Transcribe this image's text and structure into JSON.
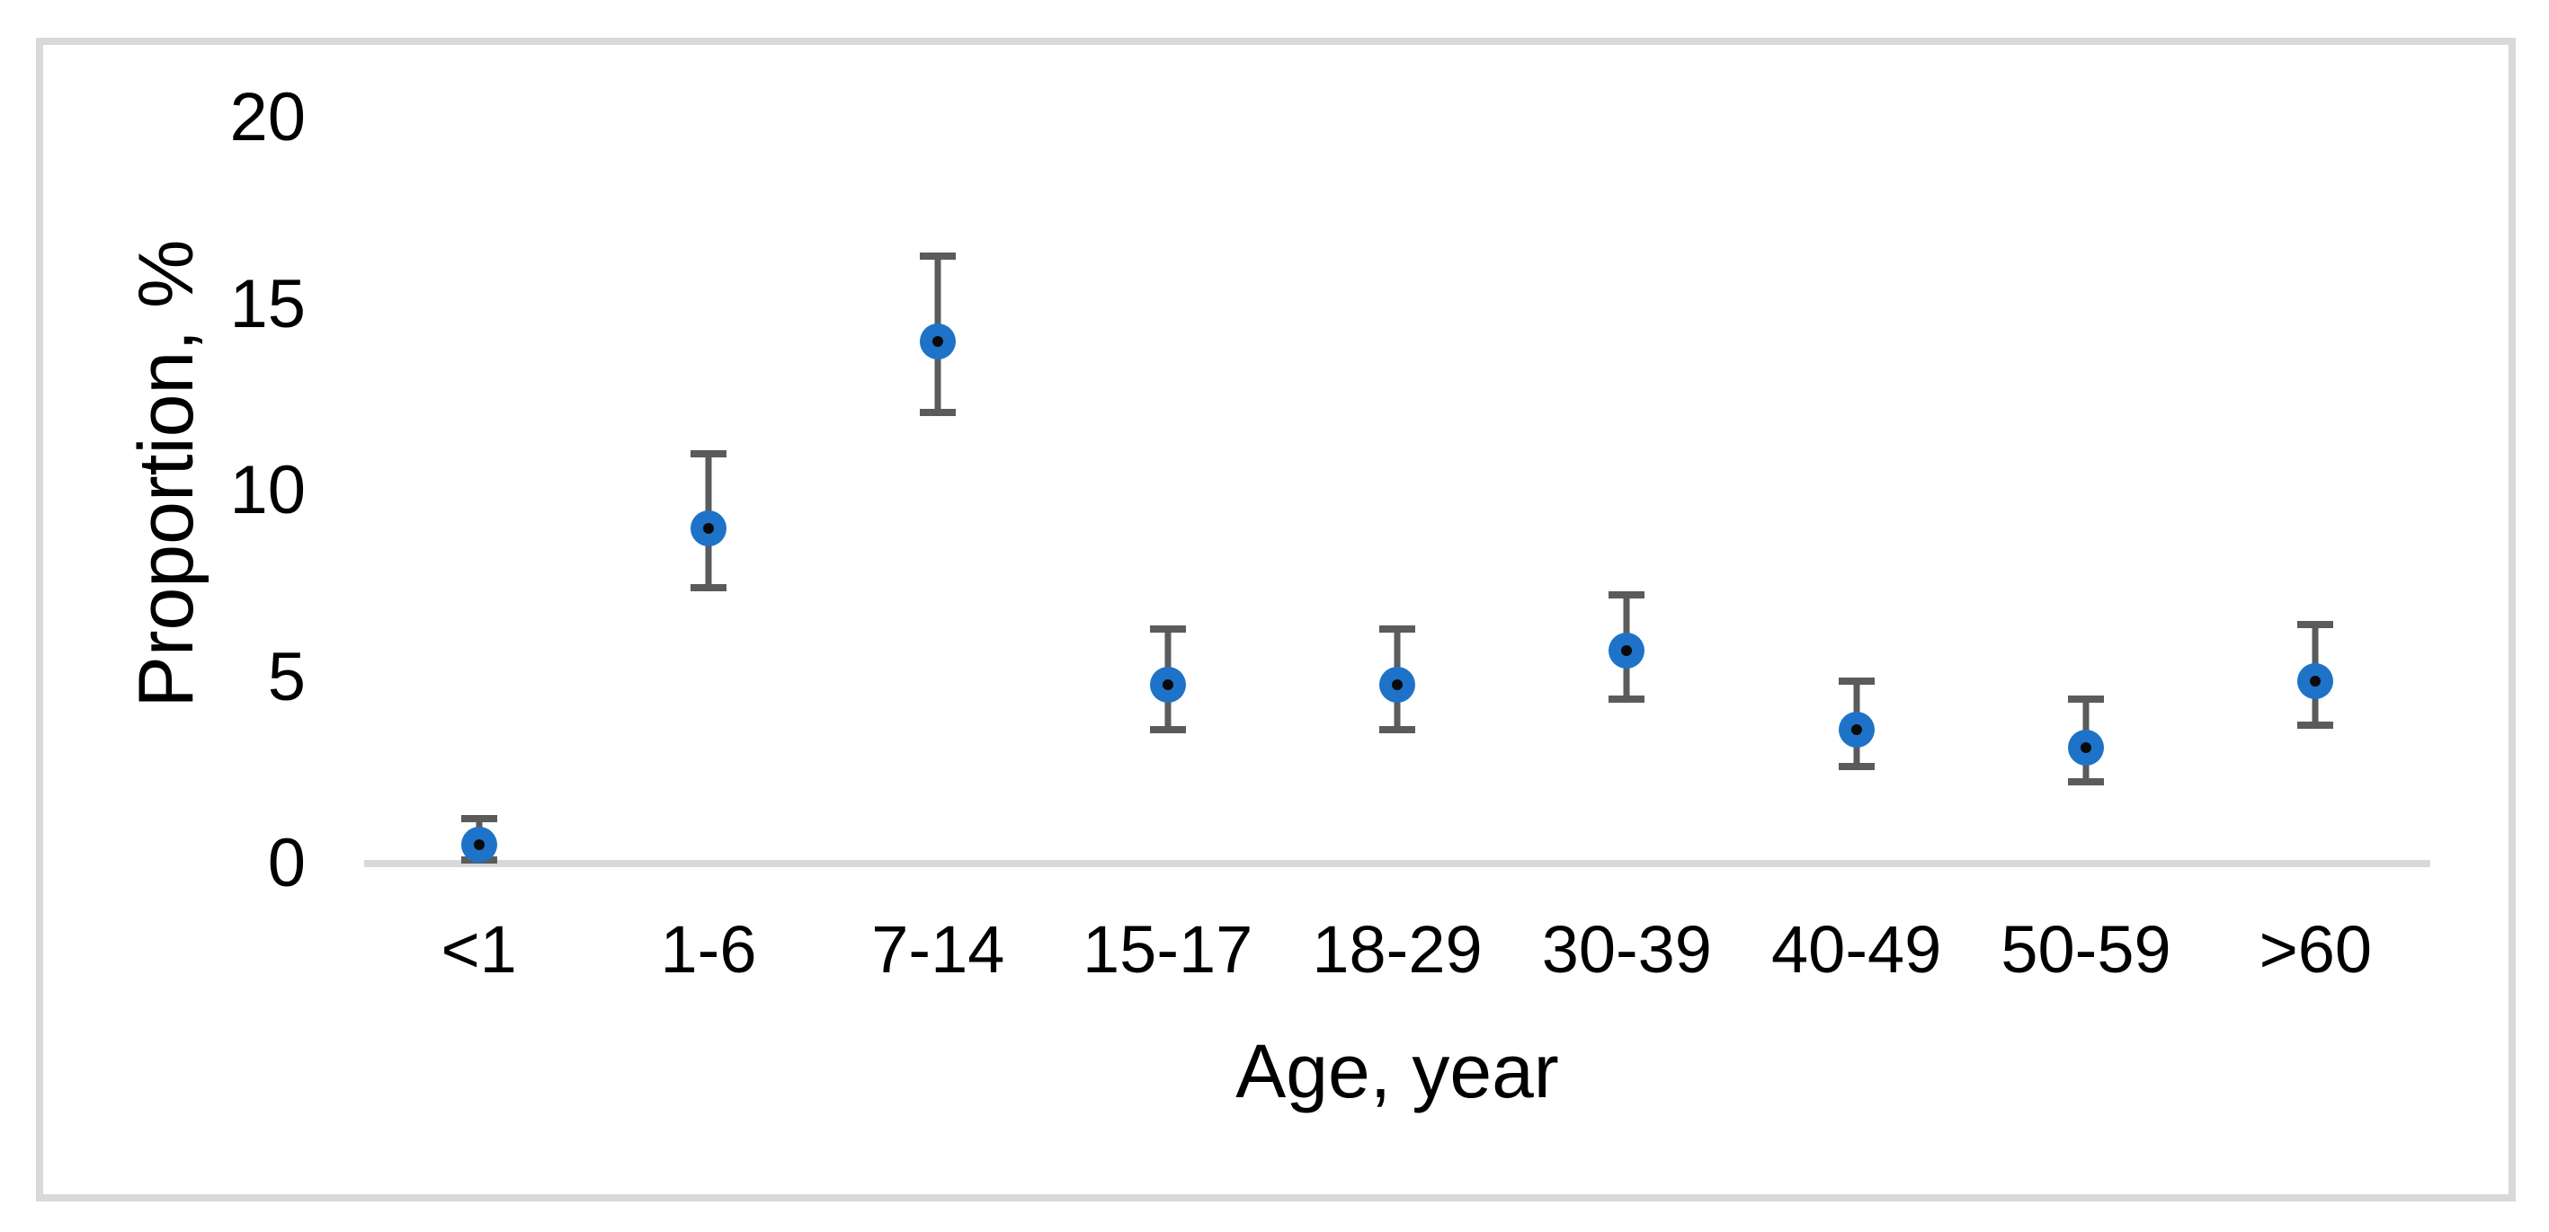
{
  "chart_data": {
    "type": "scatter",
    "title": "",
    "xlabel": "Age, year",
    "ylabel": "Proportion, %",
    "categories": [
      "<1",
      "1-6",
      "7-14",
      "15-17",
      "18-29",
      "30-39",
      "40-49",
      "50-59",
      ">60"
    ],
    "series": [
      {
        "name": "Proportion",
        "values": [
          0.5,
          9.0,
          14.0,
          4.8,
          4.8,
          5.7,
          3.6,
          3.1,
          4.9
        ],
        "ci_low": [
          0.1,
          7.4,
          12.1,
          3.6,
          3.6,
          4.4,
          2.6,
          2.2,
          3.7
        ],
        "ci_high": [
          1.2,
          11.0,
          16.3,
          6.3,
          6.3,
          7.2,
          4.9,
          4.4,
          6.4
        ]
      }
    ],
    "ylim": [
      0,
      20
    ],
    "yticks": [
      0,
      5,
      10,
      15,
      20
    ],
    "grid": false,
    "legend": "none",
    "colors": {
      "marker_fill": "#1e73c8",
      "marker_center_dot": "#0a0a0a",
      "error_bar": "#5b5b5b",
      "axis_line": "#d9d9d9",
      "frame_border": "#d9d9d9",
      "text": "#000000"
    }
  }
}
